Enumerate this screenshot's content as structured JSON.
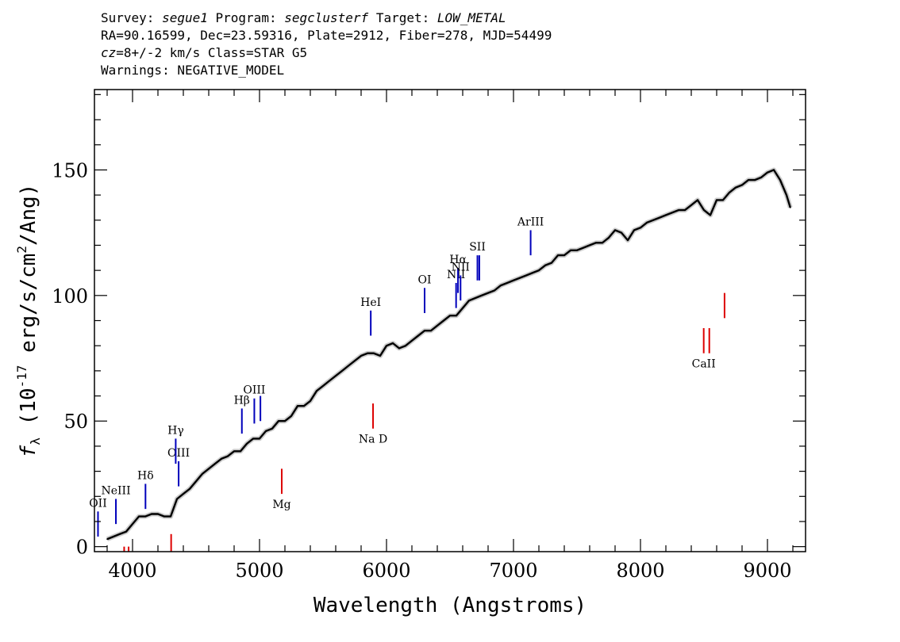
{
  "header": {
    "survey_label": "Survey:",
    "survey": "segue1",
    "program_label": "Program:",
    "program": "segclusterf",
    "target_label": "Target:",
    "target": "LOW_METAL",
    "line2": "RA=90.16599, Dec=23.59316, Plate=2912, Fiber=278, MJD=54499",
    "cz_label": "cz=",
    "cz_value": "8+/-2",
    "cz_rest": " km/s Class=STAR G5",
    "warnings": "Warnings: NEGATIVE_MODEL"
  },
  "colors": {
    "emission": "#0000bb",
    "absorption": "#dd0000",
    "spectrum": "#000000",
    "error_band": "#aaaaaa"
  },
  "chart_data": {
    "type": "line",
    "title": "",
    "xlabel": "Wavelength (Angstroms)",
    "ylabel_prefix": "f",
    "ylabel_sub": "λ",
    "ylabel_text": " (10",
    "ylabel_exp": "-17",
    "ylabel_mid": " erg/s/cm",
    "ylabel_exp2": "2",
    "ylabel_end": "/Ang)",
    "xlim": [
      3700,
      9300
    ],
    "ylim": [
      -2,
      182
    ],
    "x_ticks": [
      4000,
      5000,
      6000,
      7000,
      8000,
      9000
    ],
    "x_tick_labels": [
      "4000",
      "5000",
      "6000",
      "7000",
      "8000",
      "9000"
    ],
    "y_ticks": [
      0,
      50,
      100,
      150
    ],
    "y_tick_labels": [
      "0",
      "50",
      "100",
      "150"
    ],
    "grid": false,
    "series": [
      {
        "x": [
          3800,
          3850,
          3900,
          3950,
          4000,
          4050,
          4100,
          4150,
          4200,
          4250,
          4300,
          4350,
          4400,
          4450,
          4500,
          4550,
          4600,
          4650,
          4700,
          4750,
          4800,
          4850,
          4900,
          4950,
          5000,
          5050,
          5100,
          5150,
          5200,
          5250,
          5300,
          5350,
          5400,
          5450,
          5500,
          5550,
          5600,
          5650,
          5700,
          5750,
          5800,
          5850,
          5900,
          5950,
          6000,
          6050,
          6100,
          6150,
          6200,
          6250,
          6300,
          6350,
          6400,
          6450,
          6500,
          6550,
          6600,
          6650,
          6700,
          6750,
          6800,
          6850,
          6900,
          6950,
          7000,
          7050,
          7100,
          7150,
          7200,
          7250,
          7300,
          7350,
          7400,
          7450,
          7500,
          7550,
          7600,
          7650,
          7700,
          7750,
          7800,
          7850,
          7900,
          7950,
          8000,
          8050,
          8100,
          8150,
          8200,
          8250,
          8300,
          8350,
          8400,
          8450,
          8500,
          8550,
          8600,
          8650,
          8700,
          8750,
          8800,
          8850,
          8900,
          8950,
          9000,
          9050,
          9100,
          9150,
          9180
        ],
        "y": [
          3,
          4,
          5,
          6,
          9,
          12,
          12,
          13,
          13,
          12,
          12,
          19,
          21,
          23,
          26,
          29,
          31,
          33,
          35,
          36,
          38,
          38,
          41,
          43,
          43,
          46,
          47,
          50,
          50,
          52,
          56,
          56,
          58,
          62,
          64,
          66,
          68,
          70,
          72,
          74,
          76,
          77,
          77,
          76,
          80,
          81,
          79,
          80,
          82,
          84,
          86,
          86,
          88,
          90,
          92,
          92,
          95,
          98,
          99,
          100,
          101,
          102,
          104,
          105,
          106,
          107,
          108,
          109,
          110,
          112,
          113,
          116,
          116,
          118,
          118,
          119,
          120,
          121,
          121,
          123,
          126,
          125,
          122,
          126,
          127,
          129,
          130,
          131,
          132,
          133,
          134,
          134,
          136,
          138,
          134,
          132,
          138,
          138,
          141,
          143,
          144,
          146,
          146,
          147,
          149,
          150,
          146,
          140,
          135
        ]
      }
    ],
    "emission_lines": [
      {
        "label": "OII",
        "x": 3728,
        "y1": 4,
        "y2": 14
      },
      {
        "label": "NeIII",
        "x": 3869,
        "y1": 9,
        "y2": 19
      },
      {
        "label": "Hδ",
        "x": 4102,
        "y1": 15,
        "y2": 25
      },
      {
        "label": "OIII",
        "x": 4363,
        "y1": 24,
        "y2": 34
      },
      {
        "label": "Hγ",
        "x": 4340,
        "y1": 33,
        "y2": 43
      },
      {
        "label": "Hβ",
        "x": 4861,
        "y1": 45,
        "y2": 55
      },
      {
        "label": "OIII",
        "x": 4959,
        "y1": 49,
        "y2": 59
      },
      {
        "label": "",
        "x": 5007,
        "y1": 50,
        "y2": 60
      },
      {
        "label": "HeI",
        "x": 5876,
        "y1": 84,
        "y2": 94
      },
      {
        "label": "OI",
        "x": 6300,
        "y1": 93,
        "y2": 103
      },
      {
        "label": "NII",
        "x": 6548,
        "y1": 95,
        "y2": 105
      },
      {
        "label": "Hα",
        "x": 6563,
        "y1": 101,
        "y2": 111
      },
      {
        "label": "NII",
        "x": 6583,
        "y1": 98,
        "y2": 108
      },
      {
        "label": "SII",
        "x": 6716,
        "y1": 106,
        "y2": 116
      },
      {
        "label": "",
        "x": 6731,
        "y1": 106,
        "y2": 116
      },
      {
        "label": "ArIII",
        "x": 7135,
        "y1": 116,
        "y2": 126
      }
    ],
    "absorption_lines": [
      {
        "label": "",
        "x": 3934,
        "y1": -2,
        "y2": 0
      },
      {
        "label": "",
        "x": 3969,
        "y1": -2,
        "y2": 0
      },
      {
        "label": "",
        "x": 4304,
        "y1": -2,
        "y2": 5
      },
      {
        "label": "Mg",
        "x": 5175,
        "y1": 21,
        "y2": 31
      },
      {
        "label": "Na D",
        "x": 5894,
        "y1": 47,
        "y2": 57
      },
      {
        "label": "CaII",
        "x": 8498,
        "y1": 77,
        "y2": 87
      },
      {
        "label": "",
        "x": 8542,
        "y1": 77,
        "y2": 87
      },
      {
        "label": "",
        "x": 8662,
        "y1": 91,
        "y2": 101
      }
    ]
  }
}
